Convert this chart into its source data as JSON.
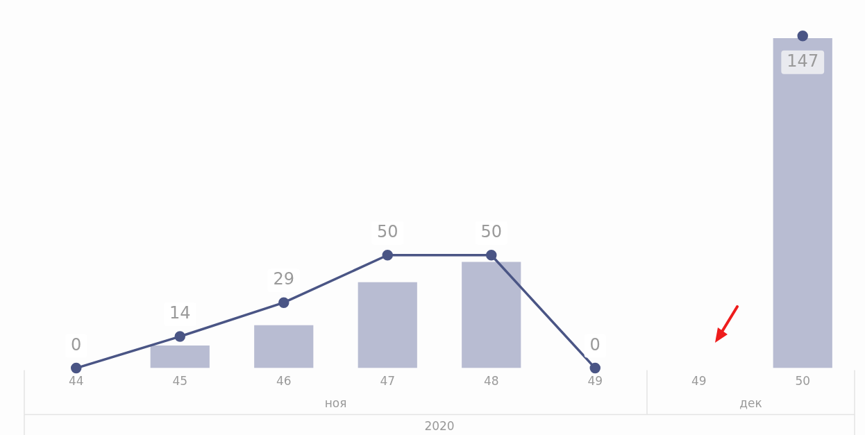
{
  "chart_data": {
    "type": "bar",
    "categories": [
      "44",
      "45",
      "46",
      "47",
      "48",
      "49",
      "49",
      "50"
    ],
    "marker": "circle",
    "line_style": "solid",
    "series": [
      {
        "color": "#b8bcd2",
        "values": [
          0,
          10,
          19,
          38,
          47,
          0,
          null,
          146
        ]
      },
      {
        "type": "line",
        "color": "#4a5585",
        "values": [
          0,
          14,
          29,
          50,
          50,
          0,
          null,
          147
        ],
        "value_labels": [
          "0",
          "14",
          "29",
          "50",
          "50",
          "0",
          null,
          "147"
        ]
      }
    ],
    "annotations": [
      "ноя",
      "дек",
      "2020"
    ]
  }
}
